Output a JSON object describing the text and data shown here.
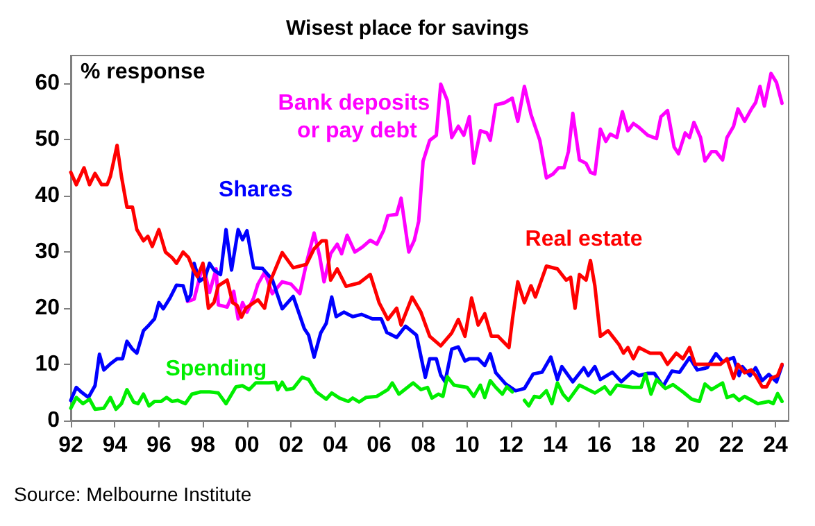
{
  "chart_data": {
    "type": "line",
    "title": "Wisest place for savings",
    "ylabel": "% response",
    "annotations": [
      "Source: Melbourne Institute"
    ],
    "xlim": [
      1992,
      2024.6
    ],
    "xticks": [
      {
        "value": 1992,
        "label": "92"
      },
      {
        "value": 1994,
        "label": "94"
      },
      {
        "value": 1996,
        "label": "96"
      },
      {
        "value": 1998,
        "label": "98"
      },
      {
        "value": 2000,
        "label": "00"
      },
      {
        "value": 2002,
        "label": "02"
      },
      {
        "value": 2004,
        "label": "04"
      },
      {
        "value": 2006,
        "label": "06"
      },
      {
        "value": 2008,
        "label": "08"
      },
      {
        "value": 2010,
        "label": "10"
      },
      {
        "value": 2012,
        "label": "12"
      },
      {
        "value": 2014,
        "label": "14"
      },
      {
        "value": 2016,
        "label": "16"
      },
      {
        "value": 2018,
        "label": "18"
      },
      {
        "value": 2020,
        "label": "20"
      },
      {
        "value": 2022,
        "label": "22"
      },
      {
        "value": 2024,
        "label": "24"
      }
    ],
    "ylim": [
      0,
      65
    ],
    "yticks": [
      0,
      10,
      20,
      30,
      40,
      50,
      60
    ],
    "grid": false,
    "marker": "none",
    "line_style": "solid",
    "series": [
      {
        "name": "Bank deposits or pay debt",
        "color": "#ff00ff",
        "x": [
          1997.3,
          1997.6,
          1998,
          1998.3,
          1998.6,
          1998.7,
          1999.1,
          1999.4,
          1999.6,
          1999.8,
          2000,
          2000.3,
          2000.5,
          2000.8,
          2001.15,
          2001.6,
          2002,
          2002.4,
          2002.7,
          2003.05,
          2003.3,
          2003.5,
          2003.8,
          2004.1,
          2004.3,
          2004.55,
          2004.9,
          2005.25,
          2005.6,
          2005.9,
          2006.2,
          2006.4,
          2006.8,
          2007,
          2007.35,
          2007.6,
          2007.8,
          2008,
          2008.3,
          2008.6,
          2008.8,
          2009.1,
          2009.3,
          2009.6,
          2009.85,
          2010.1,
          2010.3,
          2010.6,
          2010.9,
          2011.05,
          2011.3,
          2011.7,
          2012.05,
          2012.3,
          2012.6,
          2012.9,
          2013.3,
          2013.6,
          2013.9,
          2014.15,
          2014.4,
          2014.6,
          2014.8,
          2015.1,
          2015.4,
          2015.6,
          2015.8,
          2016.05,
          2016.3,
          2016.5,
          2016.8,
          2017.05,
          2017.3,
          2017.55,
          2017.8,
          2018.2,
          2018.6,
          2018.8,
          2019.1,
          2019.4,
          2019.6,
          2019.9,
          2020.1,
          2020.3,
          2020.6,
          2020.8,
          2021.1,
          2021.3,
          2021.6,
          2021.8,
          2022.1,
          2022.3,
          2022.6,
          2022.9,
          2023.1,
          2023.3,
          2023.5,
          2023.8,
          2024.05,
          2024.3
        ],
        "values": [
          21.2,
          21.6,
          27.8,
          22.8,
          27,
          20.6,
          20.2,
          23,
          18.1,
          21,
          19.3,
          21.8,
          24.3,
          26.4,
          22.6,
          24.7,
          24.3,
          22.6,
          28,
          33.4,
          29.3,
          24.7,
          29.7,
          31.4,
          29.7,
          33,
          30,
          30.9,
          32.1,
          31.4,
          33.8,
          36.5,
          36.7,
          39.6,
          30,
          32.1,
          35.5,
          46.2,
          49.9,
          50.8,
          59.9,
          57,
          50.4,
          52.4,
          50.8,
          54.1,
          45.8,
          51.6,
          51.2,
          49.9,
          56.2,
          56.6,
          57.4,
          53.3,
          59.5,
          54.5,
          49.9,
          43.2,
          43.9,
          45,
          45,
          47.9,
          54.7,
          46.4,
          45.8,
          44.2,
          43.9,
          51.9,
          49.7,
          51,
          50.4,
          55,
          51.6,
          52.9,
          52.2,
          50.8,
          50.2,
          54.1,
          55.2,
          48.7,
          47.5,
          51.2,
          50.4,
          53.1,
          50.4,
          46.2,
          47.9,
          47.9,
          46.4,
          50.4,
          52.4,
          55.5,
          53.3,
          55.4,
          56.6,
          59.5,
          56,
          61.8,
          60.2,
          56.5
        ]
      },
      {
        "name": "Shares",
        "color": "#0000ff",
        "x": [
          1992,
          1992.25,
          1992.5,
          1992.8,
          1993.1,
          1993.3,
          1993.5,
          1993.8,
          1994.1,
          1994.35,
          1994.55,
          1994.8,
          1995,
          1995.3,
          1995.55,
          1995.8,
          1996,
          1996.2,
          1996.5,
          1996.8,
          1997.1,
          1997.3,
          1997.45,
          1997.6,
          1997.85,
          1998.1,
          1998.3,
          1998.5,
          1998.8,
          1999.05,
          1999.3,
          1999.6,
          1999.8,
          2000,
          2000.3,
          2000.7,
          2001.15,
          2001.6,
          2002.1,
          2002.6,
          2002.8,
          2003.05,
          2003.35,
          2003.6,
          2003.85,
          2004.05,
          2004.4,
          2004.8,
          2005.2,
          2005.7,
          2006.1,
          2006.35,
          2006.8,
          2007.2,
          2007.7,
          2008.1,
          2008.3,
          2008.6,
          2008.8,
          2009,
          2009.3,
          2009.6,
          2009.9,
          2010.1,
          2010.5,
          2010.8,
          2011.05,
          2011.3,
          2011.75,
          2012.2,
          2012.6,
          2013,
          2013.4,
          2013.8,
          2014.1,
          2014.3,
          2014.8,
          2015.3,
          2015.5,
          2015.8,
          2016.05,
          2016.6,
          2017,
          2017.5,
          2017.8,
          2018.2,
          2018.5,
          2018.9,
          2019.3,
          2019.65,
          2020.1,
          2020.45,
          2020.9,
          2021.3,
          2021.6,
          2022.1,
          2022.35,
          2022.5,
          2022.85,
          2023.1,
          2023.4,
          2023.7,
          2024.05,
          2024.3
        ],
        "values": [
          3.6,
          5.9,
          5,
          4.1,
          6.2,
          11.8,
          9,
          10.1,
          11,
          11,
          14.1,
          12.7,
          12,
          16,
          17,
          18.1,
          21,
          19.9,
          21.8,
          24.1,
          24,
          21.4,
          22.4,
          28,
          24.8,
          25.5,
          28,
          26.8,
          26,
          34,
          26.8,
          34,
          32.2,
          33.8,
          27.2,
          27.1,
          25.1,
          19.9,
          22.1,
          16.4,
          15.2,
          11.3,
          15.6,
          17.3,
          22,
          18.5,
          19.3,
          18.5,
          18.9,
          18.1,
          18.1,
          15.7,
          14.8,
          16.8,
          15.2,
          7.7,
          11,
          11,
          8.1,
          6.9,
          12.7,
          13.1,
          10.6,
          11,
          11,
          9.8,
          11.9,
          8.5,
          6.5,
          5.3,
          5.7,
          8.3,
          8.6,
          11.3,
          7.3,
          9.6,
          6.9,
          9.4,
          8,
          9.6,
          7.3,
          8.6,
          6.9,
          8.7,
          8,
          8.4,
          8.4,
          6.1,
          8.8,
          8.6,
          11.2,
          9,
          9.4,
          11.9,
          10.5,
          11.2,
          8,
          9.6,
          8,
          9.4,
          7.1,
          8.2,
          6.9,
          9.8
        ]
      },
      {
        "name": "Real estate",
        "color": "#ff0000",
        "x": [
          1992,
          1992.25,
          1992.6,
          1992.85,
          1993.1,
          1993.4,
          1993.65,
          1993.8,
          1994.1,
          1994.3,
          1994.55,
          1994.8,
          1995,
          1995.3,
          1995.5,
          1995.7,
          1996,
          1996.3,
          1996.6,
          1996.8,
          1997.1,
          1997.35,
          1997.55,
          1997.75,
          1998,
          1998.25,
          1998.5,
          1998.7,
          1999.1,
          1999.35,
          1999.55,
          1999.75,
          1999.95,
          2000.5,
          2000.8,
          2001.05,
          2001.6,
          2002.1,
          2002.7,
          2003.05,
          2003.4,
          2003.6,
          2003.8,
          2004.1,
          2004.5,
          2005.1,
          2005.6,
          2006,
          2006.4,
          2006.8,
          2007,
          2007.5,
          2007.9,
          2008.3,
          2008.8,
          2009.3,
          2009.6,
          2009.9,
          2010.2,
          2010.5,
          2010.8,
          2011.1,
          2011.4,
          2011.9,
          2012.06,
          2012.3,
          2012.6,
          2012.9,
          2013.1,
          2013.6,
          2014.1,
          2014.5,
          2014.7,
          2014.9,
          2015.1,
          2015.4,
          2015.6,
          2015.8,
          2016.05,
          2016.4,
          2016.6,
          2016.9,
          2017.1,
          2017.3,
          2017.55,
          2017.8,
          2018.3,
          2018.8,
          2019.1,
          2019.5,
          2019.8,
          2020.1,
          2020.35,
          2020.6,
          2021.1,
          2021.5,
          2021.8,
          2022.1,
          2022.3,
          2022.6,
          2022.9,
          2023.1,
          2023.4,
          2023.6,
          2023.8,
          2024.1,
          2024.3
        ],
        "values": [
          44.2,
          42,
          45,
          42,
          44,
          42,
          42,
          43.5,
          49,
          43.5,
          38,
          38,
          34,
          32,
          32.8,
          31,
          34,
          30,
          29,
          28,
          30,
          29,
          27,
          25.6,
          28,
          20,
          21,
          24,
          25,
          21,
          20.5,
          18.4,
          20,
          21.5,
          20,
          24.7,
          29.9,
          27.2,
          27.8,
          30.6,
          32,
          32,
          25,
          27,
          23.9,
          24.5,
          26,
          21,
          18,
          20,
          17,
          22,
          19.3,
          15,
          13.3,
          15.6,
          18,
          15,
          21.8,
          17,
          19,
          15,
          15,
          13,
          18.1,
          24.7,
          21,
          24,
          22,
          27.5,
          27,
          25,
          25.5,
          20,
          26,
          25,
          28.5,
          24,
          15,
          16,
          15,
          13.5,
          12,
          13,
          11,
          13,
          12,
          12,
          10,
          12,
          11,
          13,
          10,
          10,
          10,
          10,
          11,
          7.5,
          10,
          8.5,
          9,
          8,
          6,
          6,
          7.5,
          8,
          10
        ]
      },
      {
        "name": "Spending",
        "color": "#00ee00",
        "x": [
          1992,
          1992.25,
          1992.55,
          1992.85,
          1993.1,
          1993.5,
          1993.8,
          1994.05,
          1994.3,
          1994.55,
          1994.85,
          1995.05,
          1995.3,
          1995.55,
          1995.8,
          1996.1,
          1996.35,
          1996.6,
          1996.85,
          1997.2,
          1997.5,
          1997.9,
          1998.3,
          1998.7,
          1999.05,
          1999.5,
          1999.8,
          2000.1,
          2000.4,
          2001,
          2001.3,
          2001.4,
          2001.6,
          2001.8,
          2002.1,
          2002.5,
          2002.8,
          2003.15,
          2003.6,
          2003.85,
          2004.2,
          2004.6,
          2004.8,
          2005.1,
          2005.4,
          2005.9,
          2006.4,
          2006.6,
          2006.9,
          2007.55,
          2007.9,
          2008.2,
          2008.4,
          2008.7,
          2008.9,
          2009.1,
          2009.4,
          2010,
          2010.3,
          2010.6,
          2010.8,
          2011.05,
          2011.3,
          2011.6,
          2011.8,
          2012.05,
          2012.3,
          2012.6,
          2012.8,
          2013.05,
          2013.3,
          2013.6,
          2013.85,
          2014.1,
          2014.35,
          2014.6,
          2015.1,
          2015.4,
          2015.8,
          2016.25,
          2016.5,
          2016.8,
          2017.5,
          2017.9,
          2018.1,
          2018.35,
          2018.6,
          2019,
          2019.35,
          2019.8,
          2020.2,
          2020.55,
          2020.8,
          2021.1,
          2021.6,
          2021.8,
          2022.1,
          2022.35,
          2022.6,
          2023.2,
          2023.7,
          2023.9,
          2024.1,
          2024.3
        ],
        "values": [
          2.2,
          4.1,
          3,
          3.8,
          2,
          2.2,
          4.1,
          2,
          3,
          5.5,
          3.3,
          3,
          4.7,
          2.6,
          3.4,
          3.4,
          4.1,
          3.4,
          3.6,
          3,
          4.7,
          5.1,
          5.1,
          4.9,
          3,
          6,
          6.2,
          5.5,
          6.7,
          6.7,
          6.8,
          5.5,
          6.8,
          5.5,
          5.7,
          7.7,
          7.3,
          5.1,
          3.8,
          4.9,
          4,
          3.4,
          4,
          3.3,
          4.1,
          4.3,
          5.5,
          6.7,
          4.7,
          6.7,
          5.5,
          5.9,
          4,
          4.7,
          4.3,
          7.8,
          6.3,
          5.9,
          4.3,
          6.3,
          4.1,
          7.1,
          5.9,
          4.7,
          6,
          5.1,
          null,
          3.6,
          2.6,
          4.3,
          4.1,
          5.3,
          3,
          6.7,
          4.7,
          3.6,
          6.3,
          5.7,
          4.9,
          6,
          4.7,
          6.3,
          5.9,
          5.9,
          8.3,
          4.7,
          7.3,
          5.7,
          6.4,
          5.1,
          3.8,
          3.4,
          6.5,
          5.5,
          6.7,
          4.1,
          4.5,
          3.6,
          4.3,
          3,
          3.4,
          3,
          4.8,
          3.4
        ]
      }
    ]
  }
}
